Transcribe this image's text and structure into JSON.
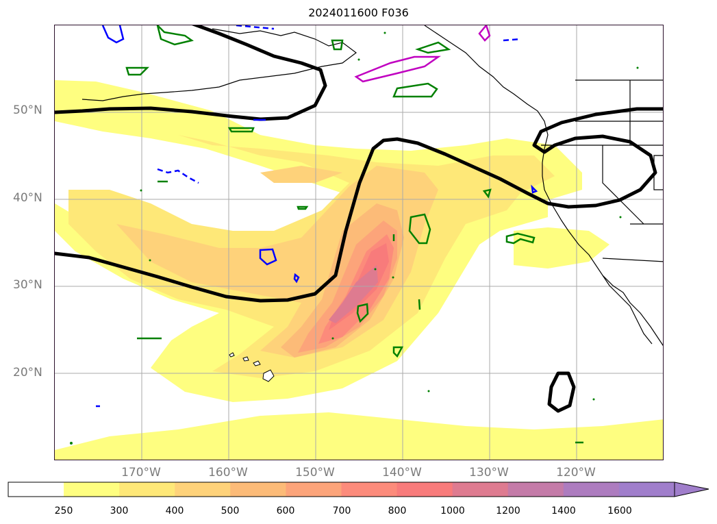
{
  "title": "2024011600 F036",
  "lat_labels": [
    "50°N",
    "40°N",
    "30°N",
    "20°N"
  ],
  "lon_labels": [
    "170°W",
    "160°W",
    "150°W",
    "140°W",
    "130°W",
    "120°W"
  ],
  "colorbar": {
    "ticks": [
      "250",
      "300",
      "400",
      "500",
      "600",
      "700",
      "800",
      "1000",
      "1200",
      "1400",
      "1600"
    ],
    "colors": [
      "#ffffff",
      "#fefe80",
      "#fee878",
      "#fed27a",
      "#fcbb78",
      "#fca47a",
      "#fc8b7b",
      "#f87b7b",
      "#de7b90",
      "#c47ba8",
      "#ad7cbf",
      "#a07ecb"
    ],
    "extend": "max"
  },
  "map_data": {
    "extent": {
      "lon_min": -180,
      "lon_max": -110,
      "lat_min": 10,
      "lat_max": 60
    },
    "projection": "PlateCarree",
    "gridlines_lon": [
      -170,
      -160,
      -150,
      -140,
      -130,
      -120
    ],
    "gridlines_lat": [
      50,
      40,
      30,
      20
    ],
    "thick_contour_color": "#000000",
    "contour_colors": {
      "green": "#008000",
      "blue": "#0000ff",
      "magenta": "#c000c0"
    }
  }
}
